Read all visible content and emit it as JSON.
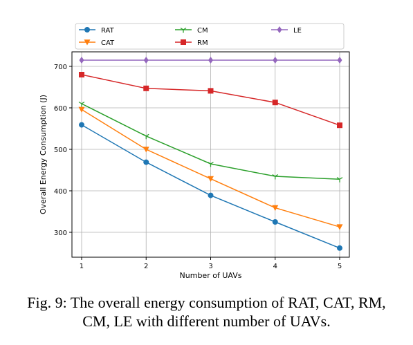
{
  "chart_data": {
    "type": "line",
    "xlabel": "Number of UAVs",
    "ylabel": "Overall Energy Consumption (J)",
    "x": [
      1,
      2,
      3,
      4,
      5
    ],
    "xlim": [
      0.85,
      5.15
    ],
    "ylim": [
      240,
      735
    ],
    "yticks": [
      300,
      400,
      500,
      600,
      700
    ],
    "grid": true,
    "legend_position": "top, above plot, 3 columns",
    "series": [
      {
        "name": "RAT",
        "color": "#1f77b4",
        "marker": "circle",
        "values": [
          559,
          469,
          389,
          325,
          262
        ]
      },
      {
        "name": "CAT",
        "color": "#ff7f0e",
        "marker": "triangle-down",
        "values": [
          596,
          500,
          429,
          359,
          313
        ]
      },
      {
        "name": "CM",
        "color": "#2ca02c",
        "marker": "tri-down",
        "values": [
          610,
          532,
          465,
          435,
          428
        ]
      },
      {
        "name": "RM",
        "color": "#d62728",
        "marker": "square",
        "values": [
          680,
          647,
          641,
          613,
          558
        ]
      },
      {
        "name": "LE",
        "color": "#9467bd",
        "marker": "diamond",
        "values": [
          715,
          715,
          715,
          715,
          715
        ]
      }
    ]
  },
  "caption": {
    "line1": "Fig. 9: The overall energy consumption of RAT, CAT, RM,",
    "line2": "CM, LE with different number of UAVs."
  }
}
